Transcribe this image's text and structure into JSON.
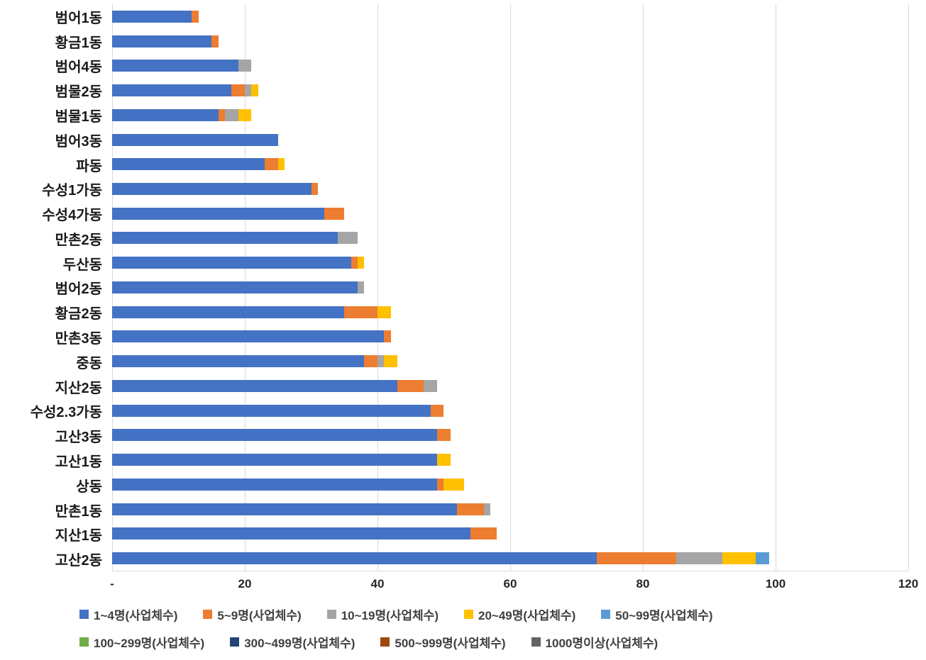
{
  "chart_data": {
    "type": "bar",
    "orientation": "horizontal-stacked",
    "title": "",
    "xlabel": "",
    "ylabel": "",
    "xmax": 120,
    "xticks": [
      0,
      20,
      40,
      60,
      80,
      100,
      120
    ],
    "xtick_labels": [
      "-",
      "20",
      "40",
      "60",
      "80",
      "100",
      "120"
    ],
    "grid": "vertical",
    "legend_position": "bottom",
    "categories": [
      "범어1동",
      "황금1동",
      "범어4동",
      "범물2동",
      "범물1동",
      "범어3동",
      "파동",
      "수성1가동",
      "수성4가동",
      "만촌2동",
      "두산동",
      "범어2동",
      "황금2동",
      "만촌3동",
      "중동",
      "지산2동",
      "수성2.3가동",
      "고산3동",
      "고산1동",
      "상동",
      "만촌1동",
      "지산1동",
      "고산2동"
    ],
    "series": [
      {
        "name": "1~4명(사업체수)",
        "color": "#4472C4",
        "values": [
          12,
          15,
          19,
          18,
          16,
          25,
          23,
          30,
          32,
          34,
          36,
          37,
          35,
          41,
          38,
          43,
          48,
          49,
          49,
          49,
          52,
          54,
          73
        ]
      },
      {
        "name": "5~9명(사업체수)",
        "color": "#ED7D31",
        "values": [
          1,
          1,
          0,
          2,
          1,
          0,
          2,
          1,
          3,
          0,
          1,
          0,
          5,
          1,
          2,
          4,
          2,
          2,
          0,
          1,
          4,
          4,
          12
        ]
      },
      {
        "name": "10~19명(사업체수)",
        "color": "#A5A5A5",
        "values": [
          0,
          0,
          2,
          1,
          2,
          0,
          0,
          0,
          0,
          3,
          0,
          1,
          0,
          0,
          1,
          2,
          0,
          0,
          0,
          0,
          1,
          0,
          7
        ]
      },
      {
        "name": "20~49명(사업체수)",
        "color": "#FFC000",
        "values": [
          0,
          0,
          0,
          1,
          2,
          0,
          1,
          0,
          0,
          0,
          1,
          0,
          2,
          0,
          2,
          0,
          0,
          0,
          2,
          3,
          0,
          0,
          5
        ]
      },
      {
        "name": "50~99명(사업체수)",
        "color": "#5B9BD5",
        "values": [
          0,
          0,
          0,
          0,
          0,
          0,
          0,
          0,
          0,
          0,
          0,
          0,
          0,
          0,
          0,
          0,
          0,
          0,
          0,
          0,
          0,
          0,
          2
        ]
      },
      {
        "name": "100~299명(사업체수)",
        "color": "#70AD47",
        "values": [
          0,
          0,
          0,
          0,
          0,
          0,
          0,
          0,
          0,
          0,
          0,
          0,
          0,
          0,
          0,
          0,
          0,
          0,
          0,
          0,
          0,
          0,
          0
        ]
      },
      {
        "name": "300~499명(사업체수)",
        "color": "#264478",
        "values": [
          0,
          0,
          0,
          0,
          0,
          0,
          0,
          0,
          0,
          0,
          0,
          0,
          0,
          0,
          0,
          0,
          0,
          0,
          0,
          0,
          0,
          0,
          0
        ]
      },
      {
        "name": "500~999명(사업체수)",
        "color": "#9E480E",
        "values": [
          0,
          0,
          0,
          0,
          0,
          0,
          0,
          0,
          0,
          0,
          0,
          0,
          0,
          0,
          0,
          0,
          0,
          0,
          0,
          0,
          0,
          0,
          0
        ]
      },
      {
        "name": "1000명이상(사업체수)",
        "color": "#636363",
        "values": [
          0,
          0,
          0,
          0,
          0,
          0,
          0,
          0,
          0,
          0,
          0,
          0,
          0,
          0,
          0,
          0,
          0,
          0,
          0,
          0,
          0,
          0,
          0
        ]
      }
    ],
    "legend_rows": [
      [
        0,
        1,
        2,
        3,
        4
      ],
      [
        5,
        6,
        7,
        8
      ]
    ]
  }
}
